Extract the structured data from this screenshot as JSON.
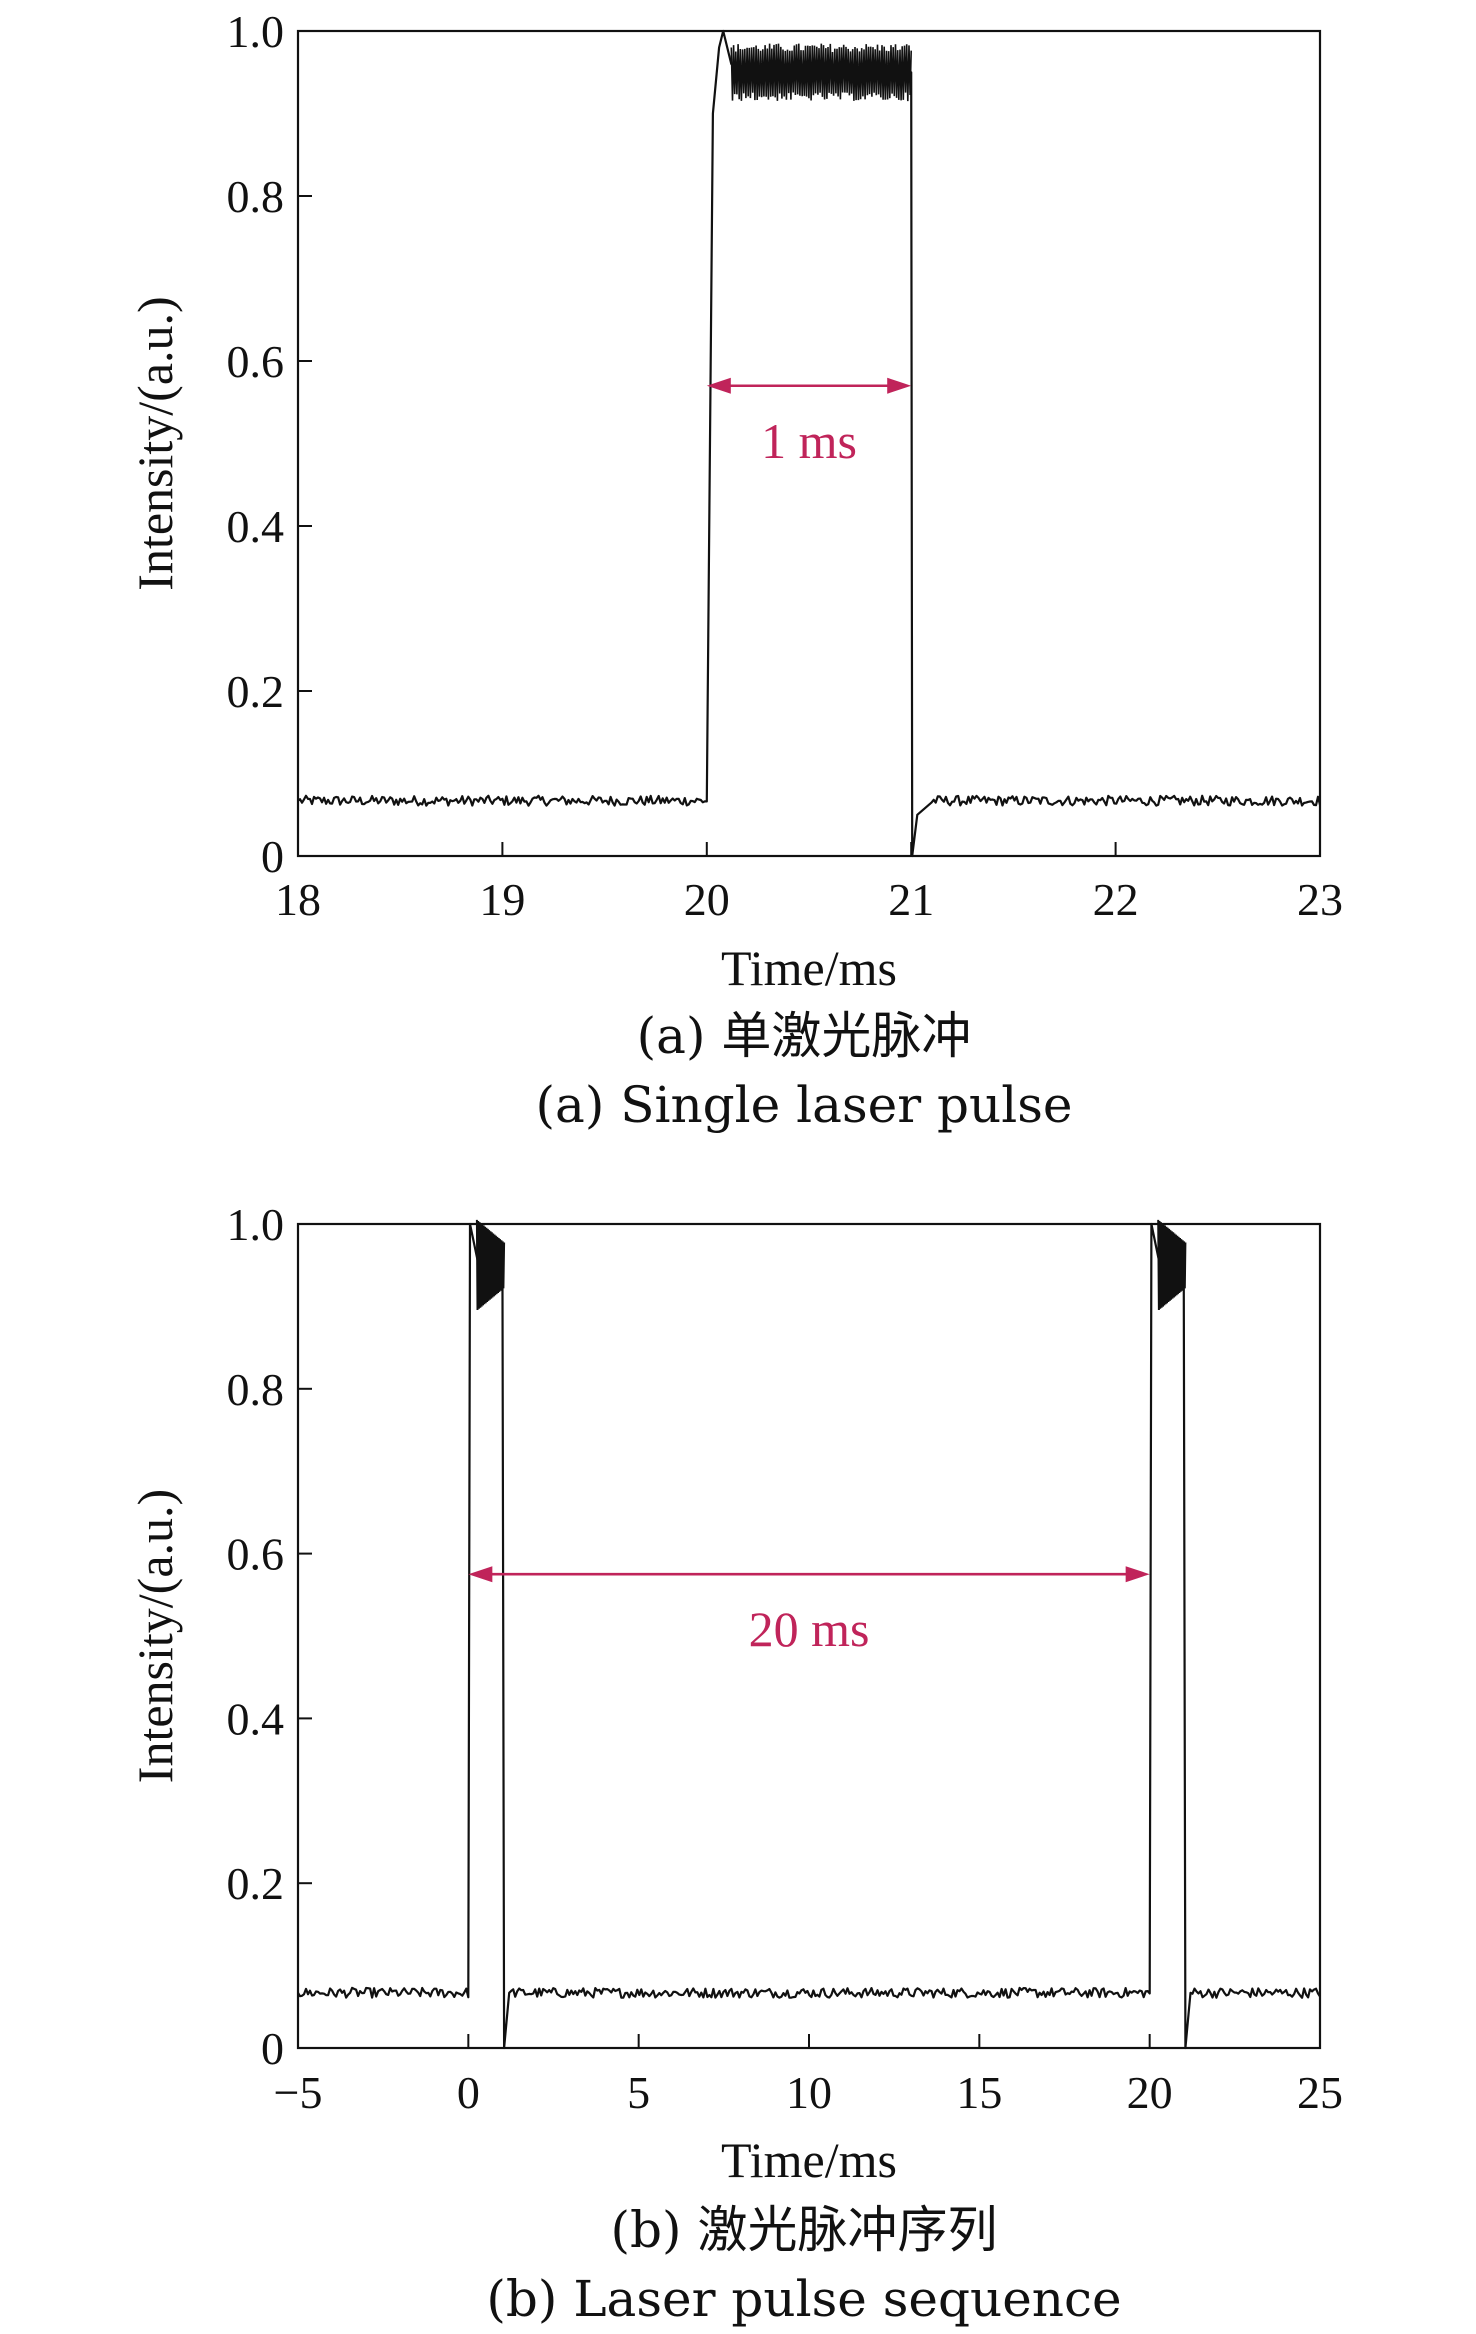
{
  "colors": {
    "line": "#111111",
    "annotation": "#c0245a"
  },
  "chart_data": [
    {
      "type": "line",
      "xlabel": "Time/ms",
      "ylabel": "Intensity/(a.u.)",
      "caption_cn": "(a) 单激光脉冲",
      "caption_en": "(a) Single laser pulse",
      "xlim": [
        18,
        23
      ],
      "ylim": [
        0,
        1.0
      ],
      "xticks": [
        "18",
        "19",
        "20",
        "21",
        "22",
        "23"
      ],
      "yticks": [
        "0",
        "0.2",
        "0.4",
        "0.6",
        "0.8",
        "1.0"
      ],
      "series": [
        {
          "values": [
            [
              18.0,
              0.067
            ],
            [
              20.0,
              0.067
            ],
            [
              20.03,
              0.9
            ],
            [
              20.06,
              0.98
            ],
            [
              20.08,
              1.0
            ],
            [
              20.12,
              0.96
            ],
            [
              20.2,
              0.94
            ],
            [
              20.4,
              0.95
            ],
            [
              20.6,
              0.95
            ],
            [
              20.8,
              0.95
            ],
            [
              21.0,
              0.95
            ],
            [
              21.005,
              0.0
            ],
            [
              21.03,
              0.05
            ],
            [
              21.1,
              0.065
            ],
            [
              21.3,
              0.067
            ],
            [
              23.0,
              0.067
            ]
          ]
        }
      ],
      "oscillation": {
        "x_range": [
          20.12,
          21.0
        ],
        "center": 0.95,
        "amplitude": 0.035
      },
      "annotation": {
        "text": "1 ms",
        "x_start": 20.0,
        "x_end": 21.0,
        "y": 0.57
      }
    },
    {
      "type": "line",
      "xlabel": "Time/ms",
      "ylabel": "Intensity/(a.u.)",
      "caption_cn": "(b) 激光脉冲序列",
      "caption_en": "(b) Laser pulse sequence",
      "xlim": [
        -5,
        25
      ],
      "ylim": [
        0,
        1.0
      ],
      "xticks": [
        "−5",
        "0",
        "5",
        "10",
        "15",
        "20",
        "25"
      ],
      "yticks": [
        "0",
        "0.2",
        "0.4",
        "0.6",
        "0.8",
        "1.0"
      ],
      "series": [
        {
          "values": [
            [
              -5.0,
              0.067
            ],
            [
              0.0,
              0.067
            ],
            [
              0.05,
              1.0
            ],
            [
              0.3,
              0.95
            ],
            [
              1.0,
              0.97
            ],
            [
              1.05,
              0.0
            ],
            [
              1.2,
              0.067
            ],
            [
              20.0,
              0.067
            ],
            [
              20.05,
              1.0
            ],
            [
              20.3,
              0.95
            ],
            [
              21.0,
              0.97
            ],
            [
              21.05,
              0.0
            ],
            [
              21.2,
              0.067
            ],
            [
              25.0,
              0.067
            ]
          ]
        }
      ],
      "annotation": {
        "text": "20 ms",
        "x_start": 0.0,
        "x_end": 20.0,
        "y": 0.575
      }
    }
  ]
}
